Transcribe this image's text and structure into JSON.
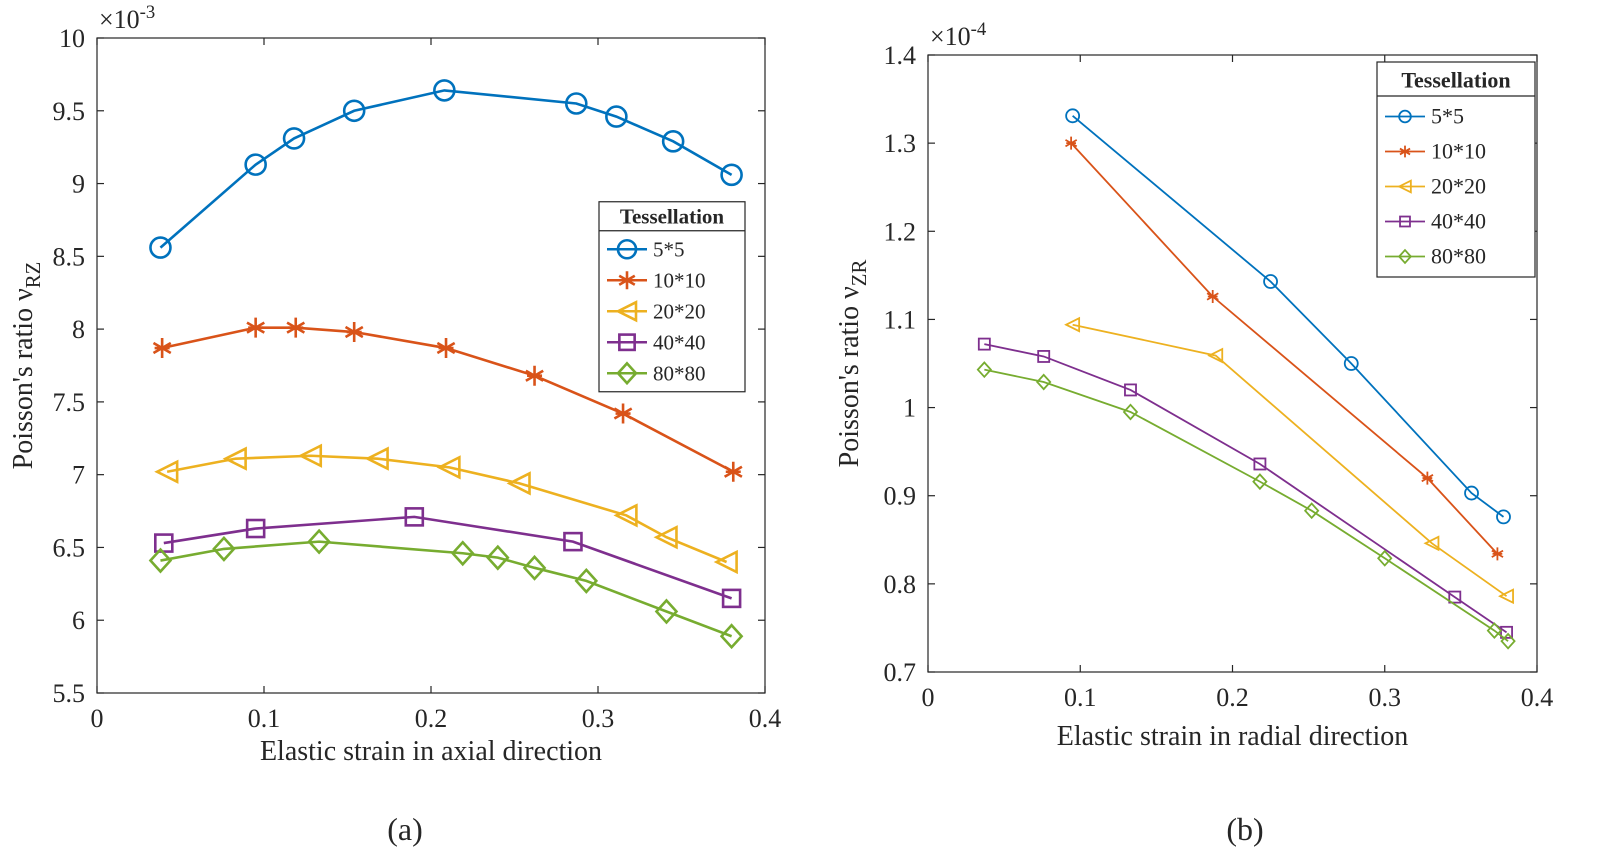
{
  "chart_data": [
    {
      "type": "line",
      "caption": "(a)",
      "xlabel": "Elastic strain in axial direction",
      "ylabel": "Poisson's ratio ν",
      "ylabel_subscript": "RZ",
      "y_scale_base": "×10",
      "y_scale_exponent": "-3",
      "xlim": [
        0,
        0.4
      ],
      "xticks": [
        0,
        0.1,
        0.2,
        0.3,
        0.4
      ],
      "ylim": [
        5.5,
        10
      ],
      "yticks": [
        5.5,
        6,
        6.5,
        7,
        7.5,
        8,
        8.5,
        9,
        9.5,
        10
      ],
      "legend_title": "Tessellation",
      "legend": "east",
      "series": [
        {
          "name": "5*5",
          "color": "#0072BD",
          "marker": "circle",
          "x": [
            0.038,
            0.095,
            0.118,
            0.154,
            0.208,
            0.287,
            0.311,
            0.345,
            0.38
          ],
          "values": [
            8.56,
            9.13,
            9.31,
            9.5,
            9.64,
            9.55,
            9.46,
            9.29,
            9.06
          ]
        },
        {
          "name": "10*10",
          "color": "#D95319",
          "marker": "asterisk",
          "x": [
            0.039,
            0.095,
            0.119,
            0.154,
            0.209,
            0.262,
            0.315,
            0.381
          ],
          "values": [
            7.87,
            8.01,
            8.01,
            7.98,
            7.87,
            7.68,
            7.42,
            7.02
          ]
        },
        {
          "name": "20*20",
          "color": "#EDB120",
          "marker": "triangle-left",
          "x": [
            0.042,
            0.083,
            0.128,
            0.168,
            0.211,
            0.253,
            0.317,
            0.341,
            0.377
          ],
          "values": [
            7.02,
            7.11,
            7.13,
            7.11,
            7.05,
            6.94,
            6.72,
            6.57,
            6.4
          ]
        },
        {
          "name": "40*40",
          "color": "#7E2F8E",
          "marker": "square",
          "x": [
            0.04,
            0.095,
            0.19,
            0.285,
            0.38
          ],
          "values": [
            6.53,
            6.63,
            6.71,
            6.54,
            6.15
          ]
        },
        {
          "name": "80*80",
          "color": "#77AC30",
          "marker": "diamond",
          "x": [
            0.038,
            0.076,
            0.133,
            0.219,
            0.24,
            0.262,
            0.293,
            0.341,
            0.38
          ],
          "values": [
            6.41,
            6.49,
            6.54,
            6.46,
            6.43,
            6.36,
            6.27,
            6.06,
            5.89
          ]
        }
      ]
    },
    {
      "type": "line",
      "caption": "(b)",
      "xlabel": "Elastic strain in radial direction",
      "ylabel": "Poisson's ratio ν",
      "ylabel_subscript": "ZR",
      "y_scale_base": "×10",
      "y_scale_exponent": "-4",
      "xlim": [
        0,
        0.4
      ],
      "xticks": [
        0,
        0.1,
        0.2,
        0.3,
        0.4
      ],
      "ylim": [
        0.7,
        1.4
      ],
      "yticks": [
        0.7,
        0.8,
        0.9,
        1,
        1.1,
        1.2,
        1.3,
        1.4
      ],
      "legend_title": "Tessellation",
      "legend": "northeast",
      "series": [
        {
          "name": "5*5",
          "color": "#0072BD",
          "marker": "circle",
          "x": [
            0.095,
            0.225,
            0.278,
            0.357,
            0.378
          ],
          "values": [
            1.331,
            1.143,
            1.05,
            0.903,
            0.876
          ]
        },
        {
          "name": "10*10",
          "color": "#D95319",
          "marker": "asterisk",
          "x": [
            0.094,
            0.187,
            0.328,
            0.374
          ],
          "values": [
            1.3,
            1.126,
            0.92,
            0.834
          ]
        },
        {
          "name": "20*20",
          "color": "#EDB120",
          "marker": "triangle-left",
          "x": [
            0.095,
            0.189,
            0.331,
            0.38
          ],
          "values": [
            1.094,
            1.059,
            0.846,
            0.786
          ]
        },
        {
          "name": "40*40",
          "color": "#7E2F8E",
          "marker": "square",
          "x": [
            0.037,
            0.076,
            0.133,
            0.218,
            0.346,
            0.38
          ],
          "values": [
            1.072,
            1.058,
            1.02,
            0.936,
            0.785,
            0.745
          ]
        },
        {
          "name": "80*80",
          "color": "#77AC30",
          "marker": "diamond",
          "x": [
            0.037,
            0.076,
            0.133,
            0.218,
            0.252,
            0.3,
            0.372,
            0.381
          ],
          "values": [
            1.043,
            1.029,
            0.995,
            0.916,
            0.883,
            0.829,
            0.747,
            0.735
          ]
        }
      ]
    }
  ]
}
